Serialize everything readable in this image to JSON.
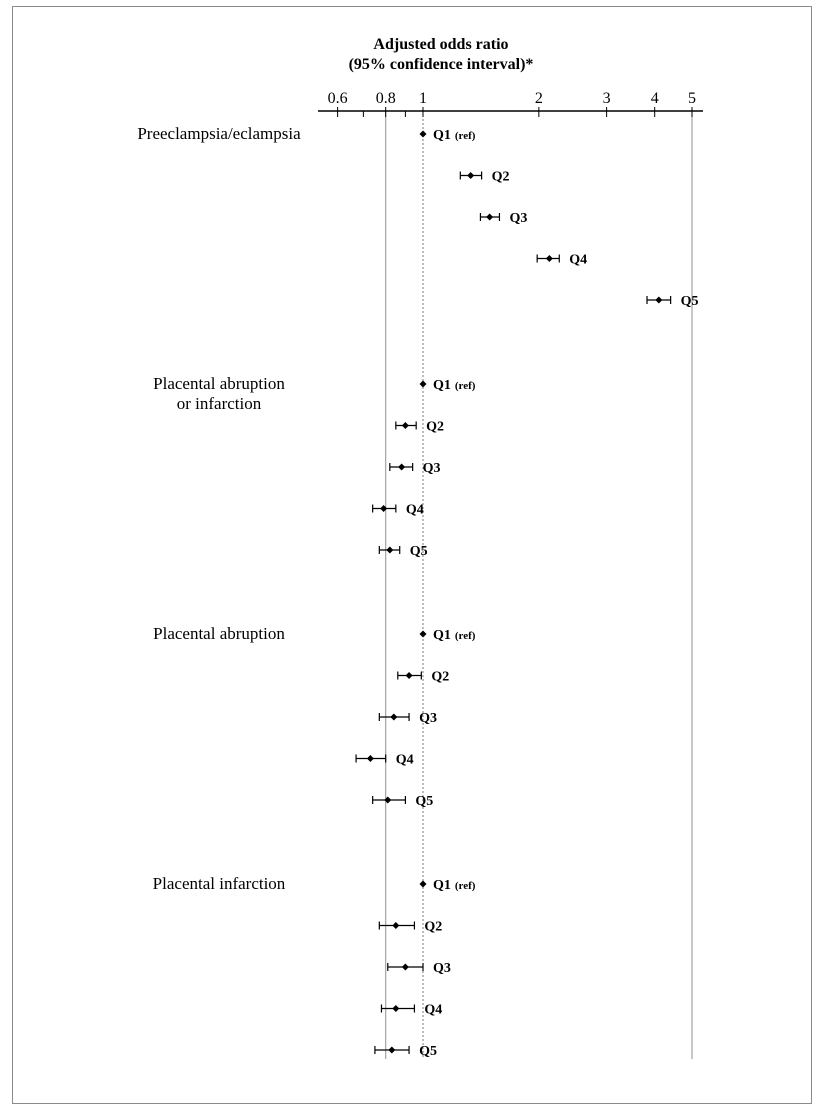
{
  "chart_data": {
    "type": "forest",
    "title_line1": "Adjusted odds ratio",
    "title_line2": "(95% confidence interval)*",
    "x_scale": "log",
    "xlim": [
      0.5,
      5.2
    ],
    "x_ticks": [
      0.6,
      0.8,
      1,
      2,
      3,
      4,
      5
    ],
    "x_tick_labels": [
      "0.6",
      "0.8",
      "1",
      "2",
      "3",
      "4",
      "5"
    ],
    "reference_lines": [
      0.8,
      1,
      5
    ],
    "groups": [
      {
        "label_lines": [
          "Preeclampsia/eclampsia"
        ],
        "rows": [
          {
            "label": "Q1",
            "suffix": "(ref)",
            "or": 1.0,
            "lo": 1.0,
            "hi": 1.0
          },
          {
            "label": "Q2",
            "or": 1.33,
            "lo": 1.25,
            "hi": 1.42
          },
          {
            "label": "Q3",
            "or": 1.49,
            "lo": 1.41,
            "hi": 1.58
          },
          {
            "label": "Q4",
            "or": 2.13,
            "lo": 1.98,
            "hi": 2.26
          },
          {
            "label": "Q5",
            "or": 4.1,
            "lo": 3.82,
            "hi": 4.4
          }
        ]
      },
      {
        "label_lines": [
          "Placental abruption",
          "or infarction"
        ],
        "rows": [
          {
            "label": "Q1",
            "suffix": "(ref)",
            "or": 1.0,
            "lo": 1.0,
            "hi": 1.0
          },
          {
            "label": "Q2",
            "or": 0.9,
            "lo": 0.85,
            "hi": 0.96
          },
          {
            "label": "Q3",
            "or": 0.88,
            "lo": 0.82,
            "hi": 0.94
          },
          {
            "label": "Q4",
            "or": 0.79,
            "lo": 0.74,
            "hi": 0.85
          },
          {
            "label": "Q5",
            "or": 0.82,
            "lo": 0.77,
            "hi": 0.87
          }
        ]
      },
      {
        "label_lines": [
          "Placental abruption"
        ],
        "rows": [
          {
            "label": "Q1",
            "suffix": "(ref)",
            "or": 1.0,
            "lo": 1.0,
            "hi": 1.0
          },
          {
            "label": "Q2",
            "or": 0.92,
            "lo": 0.86,
            "hi": 0.99
          },
          {
            "label": "Q3",
            "or": 0.84,
            "lo": 0.77,
            "hi": 0.92
          },
          {
            "label": "Q4",
            "or": 0.73,
            "lo": 0.67,
            "hi": 0.8
          },
          {
            "label": "Q5",
            "or": 0.81,
            "lo": 0.74,
            "hi": 0.9
          }
        ]
      },
      {
        "label_lines": [
          "Placental infarction"
        ],
        "rows": [
          {
            "label": "Q1",
            "suffix": "(ref)",
            "or": 1.0,
            "lo": 1.0,
            "hi": 1.0
          },
          {
            "label": "Q2",
            "or": 0.85,
            "lo": 0.77,
            "hi": 0.95
          },
          {
            "label": "Q3",
            "or": 0.9,
            "lo": 0.81,
            "hi": 1.0
          },
          {
            "label": "Q4",
            "or": 0.85,
            "lo": 0.78,
            "hi": 0.95
          },
          {
            "label": "Q5",
            "or": 0.83,
            "lo": 0.75,
            "hi": 0.92
          }
        ]
      }
    ]
  }
}
